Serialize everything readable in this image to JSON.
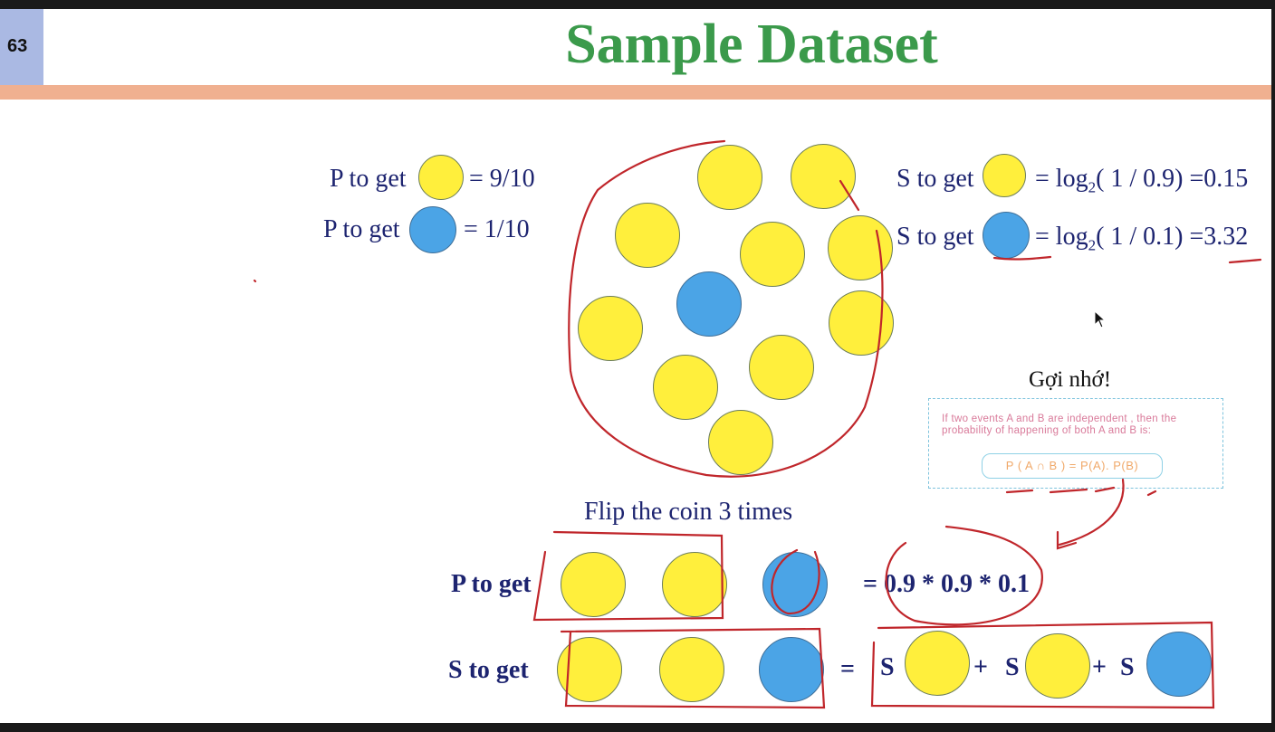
{
  "slide": {
    "number": "63",
    "title": "Sample Dataset"
  },
  "probabilities": {
    "p_yellow_prefix": "P to get",
    "p_yellow_value": "= 9/10",
    "p_blue_prefix": "P to get",
    "p_blue_value": "= 1/10"
  },
  "surprisal": {
    "s_yellow_prefix": "S to get",
    "s_yellow_eq": "= log",
    "s_yellow_base": "2",
    "s_yellow_arg": "( 1 / 0.9) =0.15",
    "s_blue_prefix": "S to get",
    "s_blue_eq": "= log",
    "s_blue_base": "2",
    "s_blue_arg": "( 1 / 0.1) =3.32"
  },
  "hint": {
    "title": "Gợi nhớ!",
    "text": "If two events A and B are independent , then the probability of happening of both A and B is:",
    "formula": "P ( A ∩ B ) = P(A). P(B)"
  },
  "flip": {
    "heading": "Flip the coin 3 times",
    "p_label": "P to get",
    "p_result": "= 0.9 * 0.9 * 0.1",
    "s_label": "S to get",
    "s_eq": "=",
    "s_term_label": "S",
    "plus": "+"
  },
  "colors": {
    "yellow": "#ffef3c",
    "blue": "#4ba4e6",
    "title_green": "#3b9a4b",
    "text_navy": "#1d2470",
    "accent_bar": "#f0b090",
    "ink": "#c0262b"
  },
  "icons": {
    "cursor": "mouse-pointer-icon"
  }
}
